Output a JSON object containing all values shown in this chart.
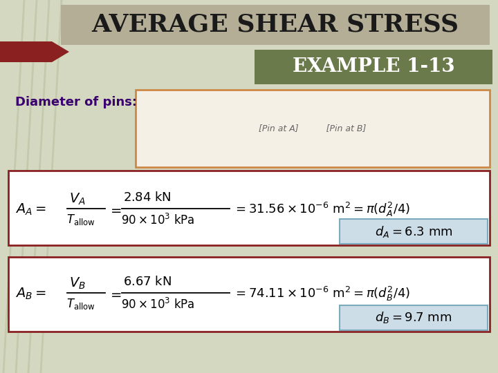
{
  "title": "AVERAGE SHEAR STRESS",
  "example_label": "EXAMPLE 1-13",
  "subtitle": "Diameter of pins:",
  "bg_color": "#d4d8c0",
  "title_bg": "#b5ae96",
  "example_bg": "#6b7a4a",
  "arrow_color": "#8b2020",
  "formula_box_bg": "#ffffff",
  "formula_box_border": "#8b2020",
  "result_box_bg": "#ccdde8",
  "result_box_border": "#7aaabb",
  "subtitle_color": "#3a006f",
  "title_color": "#1a1a1a",
  "example_color": "#ffffff",
  "img_box_bg": "#f5f0e5",
  "img_box_border": "#cc8844"
}
